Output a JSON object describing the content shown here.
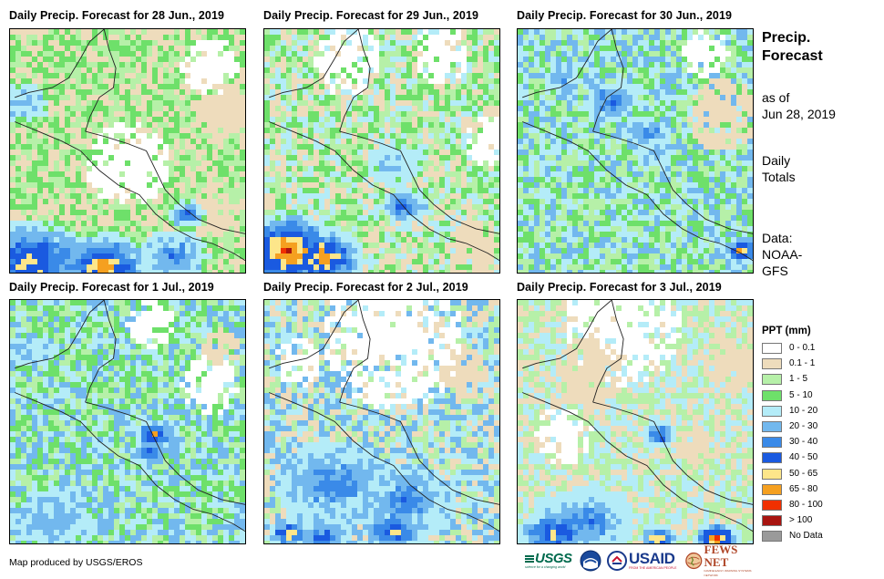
{
  "panels": [
    {
      "title": "Daily Precip. Forecast for 28 Jun., 2019"
    },
    {
      "title": "Daily Precip. Forecast for 29 Jun., 2019"
    },
    {
      "title": "Daily Precip. Forecast for 30 Jun., 2019"
    },
    {
      "title": "Daily Precip. Forecast for 1 Jul., 2019"
    },
    {
      "title": "Daily Precip. Forecast for 2 Jul., 2019"
    },
    {
      "title": "Daily Precip. Forecast for 3 Jul., 2019"
    }
  ],
  "side": {
    "heading_line1": "Precip.",
    "heading_line2": "Forecast",
    "asof_line1": "as of",
    "asof_line2": "Jun 28, 2019",
    "totals_line1": "Daily",
    "totals_line2": "Totals",
    "data_line1": "Data:",
    "data_line2": "NOAA-",
    "data_line3": "GFS"
  },
  "legend": {
    "title": "PPT (mm)",
    "items": [
      {
        "label": "0 - 0.1",
        "color": "#ffffff"
      },
      {
        "label": "0.1 - 1",
        "color": "#eedcbc"
      },
      {
        "label": "1 - 5",
        "color": "#b6f0a8"
      },
      {
        "label": "5 - 10",
        "color": "#6ee06a"
      },
      {
        "label": "10 - 20",
        "color": "#b4ecf8"
      },
      {
        "label": "20 - 30",
        "color": "#72b8ee"
      },
      {
        "label": "30 - 40",
        "color": "#3a8ae8"
      },
      {
        "label": "40 - 50",
        "color": "#1a5ae0"
      },
      {
        "label": "50 - 65",
        "color": "#fde68a"
      },
      {
        "label": "65 - 80",
        "color": "#f5a020"
      },
      {
        "label": "80 - 100",
        "color": "#f03000"
      },
      {
        "label": "> 100",
        "color": "#a81410"
      },
      {
        "label": "No Data",
        "color": "#9a9a9a"
      }
    ]
  },
  "credit": "Map produced by USGS/EROS",
  "logos": {
    "usgs": "USGS",
    "usgs_tagline": "science for a changing world",
    "usaid": "USAID",
    "usaid_tagline": "FROM THE AMERICAN PEOPLE",
    "fewsnet": "FEWS NET",
    "fewsnet_tagline": "FAMINE EARLY WARNING SYSTEMS NETWORK"
  }
}
